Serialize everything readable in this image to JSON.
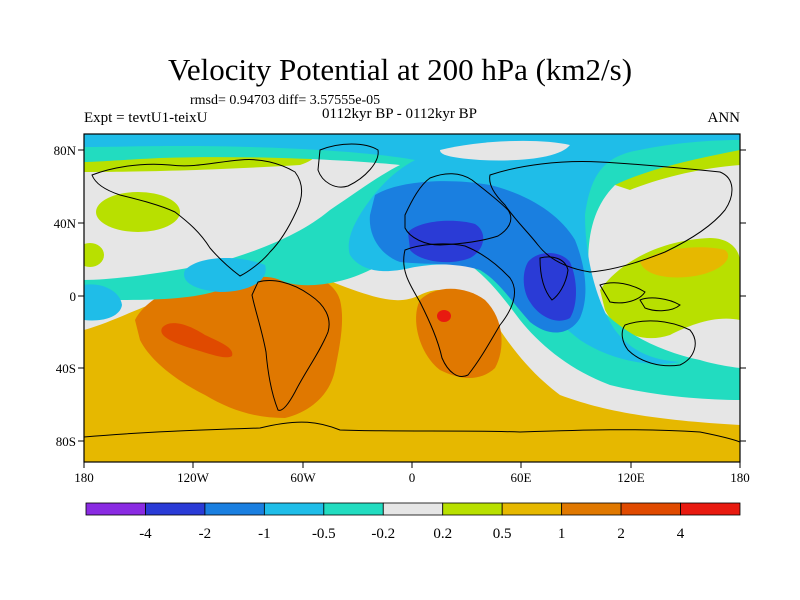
{
  "figure": {
    "title": "Velocity Potential at 200 hPa (km2/s)",
    "stats": "rmsd= 0.94703 diff= 3.57555e-05",
    "experiment": "Expt = tevtU1-teixU",
    "period": "0112kyr BP - 0112kyr BP",
    "season": "ANN"
  },
  "axes": {
    "lat_ticks": [
      "80N",
      "40N",
      "0",
      "40S",
      "80S"
    ],
    "lon_ticks": [
      "180",
      "120W",
      "60W",
      "0",
      "60E",
      "120E",
      "180"
    ]
  },
  "colorbar": {
    "colors": [
      "#8a2be2",
      "#2a3bd6",
      "#1a7fe0",
      "#1fbde8",
      "#22dcc0",
      "#e6e6e6",
      "#b8e000",
      "#e6b800",
      "#e07800",
      "#e04a00",
      "#e81a10"
    ],
    "labels": [
      "-4",
      "-2",
      "-1",
      "-0.5",
      "-0.2",
      "0.2",
      "0.5",
      "1",
      "2",
      "4"
    ]
  },
  "palette": {
    "ocean_base": "#e6e6e6",
    "coast": "#000000"
  }
}
